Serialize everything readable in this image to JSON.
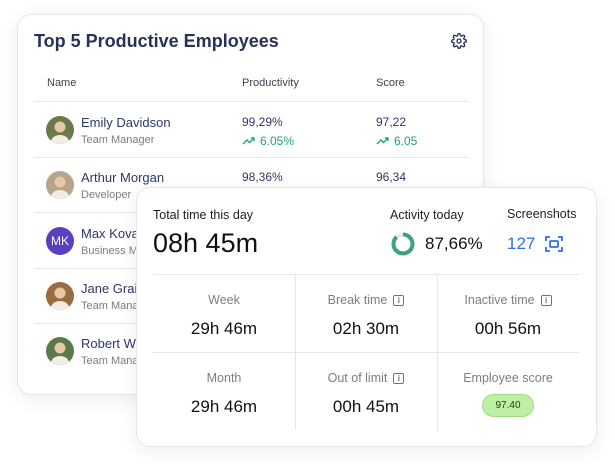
{
  "top_employees": {
    "title": "Top 5 Productive Employees",
    "columns": [
      "Name",
      "Productivity",
      "Score"
    ],
    "rows": [
      {
        "name": "Emily Davidson",
        "role": "Team Manager",
        "productivity": "99,29%",
        "productivity_trend": "6.05%",
        "score": "97,22",
        "score_trend": "6.05",
        "avatar_color": "#6a7a4a"
      },
      {
        "name": "Arthur Morgan",
        "role": "Developer",
        "productivity": "98,36%",
        "score": "96,34",
        "avatar_color": "#b8a48a"
      },
      {
        "name": "Max Kovalenko",
        "role": "Business Manager",
        "initials": "MK",
        "avatar_color": "#5a3fc0"
      },
      {
        "name": "Jane Grainger",
        "role": "Team Manager",
        "avatar_color": "#9a6a40"
      },
      {
        "name": "Robert Walker",
        "role": "Team Manager",
        "avatar_color": "#5a7a4a"
      }
    ]
  },
  "summary": {
    "total_label": "Total time this day",
    "total_value": "08h 45m",
    "activity_label": "Activity today",
    "activity_value": "87,66%",
    "activity_fraction": 0.8766,
    "screenshots_label": "Screenshots",
    "screenshots_value": "127",
    "cells": [
      {
        "label": "Week",
        "value": "29h 46m"
      },
      {
        "label": "Break time",
        "value": "02h 30m"
      },
      {
        "label": "Inactive time",
        "value": "00h 56m"
      },
      {
        "label": "Month",
        "value": "29h 46m"
      },
      {
        "label": "Out of limit",
        "value": "00h 45m"
      },
      {
        "label": "Employee score",
        "value": "97.40"
      }
    ]
  },
  "colors": {
    "accent": "#2f6df0",
    "positive": "#21a865",
    "ring": "#3fa27a"
  }
}
